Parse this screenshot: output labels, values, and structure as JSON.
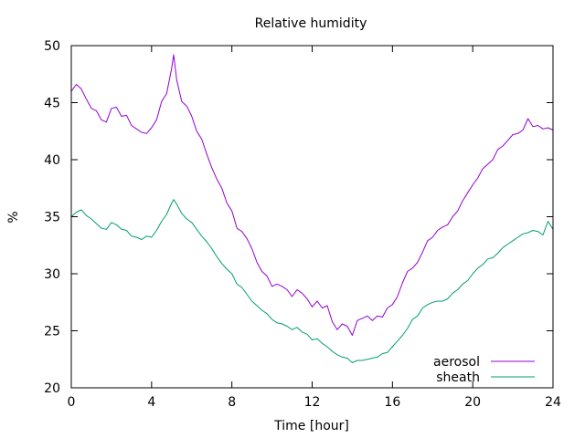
{
  "chart_data": {
    "type": "line",
    "title": "Relative humidity",
    "xlabel": "Time [hour]",
    "ylabel": "%",
    "xlim": [
      0,
      24
    ],
    "ylim": [
      20,
      50
    ],
    "xticks": [
      0,
      4,
      8,
      12,
      16,
      20,
      24
    ],
    "yticks": [
      20,
      25,
      30,
      35,
      40,
      45,
      50
    ],
    "grid": false,
    "legend_position": "bottom-right",
    "series": [
      {
        "name": "aerosol",
        "color": "#9400d3",
        "x": [
          0,
          0.25,
          0.5,
          0.75,
          1,
          1.25,
          1.5,
          1.75,
          2,
          2.25,
          2.5,
          2.75,
          3,
          3.25,
          3.5,
          3.75,
          4,
          4.25,
          4.5,
          4.75,
          5,
          5.1,
          5.25,
          5.5,
          5.75,
          6,
          6.25,
          6.5,
          6.75,
          7,
          7.25,
          7.5,
          7.75,
          8,
          8.25,
          8.5,
          8.75,
          9,
          9.25,
          9.5,
          9.75,
          10,
          10.25,
          10.5,
          10.75,
          11,
          11.25,
          11.5,
          11.75,
          12,
          12.25,
          12.5,
          12.75,
          13,
          13.25,
          13.5,
          13.75,
          14,
          14.25,
          14.5,
          14.75,
          15,
          15.25,
          15.5,
          15.75,
          16,
          16.25,
          16.5,
          16.75,
          17,
          17.25,
          17.5,
          17.75,
          18,
          18.25,
          18.5,
          18.75,
          19,
          19.25,
          19.5,
          19.75,
          20,
          20.25,
          20.5,
          20.75,
          21,
          21.25,
          21.5,
          21.75,
          22,
          22.25,
          22.5,
          22.75,
          23,
          23.25,
          23.5,
          23.75,
          24
        ],
        "values": [
          46.0,
          46.6,
          46.2,
          45.3,
          44.5,
          44.3,
          43.5,
          43.3,
          44.5,
          44.6,
          43.8,
          43.9,
          43.0,
          42.7,
          42.4,
          42.3,
          42.8,
          43.5,
          45.1,
          45.8,
          48.0,
          49.2,
          47.0,
          45.1,
          44.7,
          43.8,
          42.5,
          41.8,
          40.5,
          39.3,
          38.3,
          37.5,
          36.2,
          35.5,
          34.0,
          33.7,
          33.1,
          32.2,
          31.0,
          30.2,
          29.8,
          28.9,
          29.1,
          28.9,
          28.6,
          28.0,
          28.6,
          28.3,
          27.8,
          27.1,
          27.6,
          27.0,
          27.2,
          25.8,
          25.1,
          25.6,
          25.4,
          24.6,
          25.9,
          26.1,
          26.3,
          25.9,
          26.3,
          26.2,
          27.0,
          27.3,
          28.0,
          29.2,
          30.2,
          30.5,
          31.0,
          31.9,
          32.9,
          33.2,
          33.8,
          34.1,
          34.3,
          35.0,
          35.5,
          36.4,
          37.1,
          37.8,
          38.4,
          39.2,
          39.6,
          40.0,
          40.9,
          41.2,
          41.7,
          42.2,
          42.3,
          42.6,
          43.6,
          42.9,
          43.0,
          42.7,
          42.8,
          42.6
        ]
      },
      {
        "name": "sheath",
        "color": "#009e73",
        "x": [
          0,
          0.25,
          0.5,
          0.75,
          1,
          1.25,
          1.5,
          1.75,
          2,
          2.25,
          2.5,
          2.75,
          3,
          3.25,
          3.5,
          3.75,
          4,
          4.25,
          4.5,
          4.75,
          5,
          5.1,
          5.25,
          5.5,
          5.75,
          6,
          6.25,
          6.5,
          6.75,
          7,
          7.25,
          7.5,
          7.75,
          8,
          8.25,
          8.5,
          8.75,
          9,
          9.25,
          9.5,
          9.75,
          10,
          10.25,
          10.5,
          10.75,
          11,
          11.25,
          11.5,
          11.75,
          12,
          12.25,
          12.5,
          12.75,
          13,
          13.25,
          13.5,
          13.75,
          14,
          14.25,
          14.5,
          14.75,
          15,
          15.25,
          15.5,
          15.75,
          16,
          16.25,
          16.5,
          16.75,
          17,
          17.25,
          17.5,
          17.75,
          18,
          18.25,
          18.5,
          18.75,
          19,
          19.25,
          19.5,
          19.75,
          20,
          20.25,
          20.5,
          20.75,
          21,
          21.25,
          21.5,
          21.75,
          22,
          22.25,
          22.5,
          22.75,
          23,
          23.25,
          23.5,
          23.75,
          24
        ],
        "values": [
          35.0,
          35.4,
          35.6,
          35.1,
          34.8,
          34.4,
          34.0,
          33.9,
          34.5,
          34.3,
          33.9,
          33.8,
          33.3,
          33.2,
          33.0,
          33.3,
          33.2,
          33.8,
          34.6,
          35.2,
          36.2,
          36.5,
          36.1,
          35.3,
          34.8,
          34.5,
          33.9,
          33.3,
          32.8,
          32.2,
          31.5,
          30.9,
          30.4,
          30.0,
          29.1,
          28.8,
          28.2,
          27.6,
          27.2,
          26.8,
          26.5,
          26.0,
          25.7,
          25.6,
          25.4,
          25.1,
          25.3,
          24.9,
          24.7,
          24.2,
          24.3,
          23.9,
          23.6,
          23.2,
          22.9,
          22.7,
          22.6,
          22.2,
          22.4,
          22.4,
          22.5,
          22.6,
          22.7,
          23.0,
          23.1,
          23.6,
          24.1,
          24.6,
          25.2,
          26.0,
          26.3,
          27.0,
          27.3,
          27.5,
          27.6,
          27.6,
          27.8,
          28.3,
          28.6,
          29.1,
          29.4,
          30.0,
          30.5,
          30.8,
          31.3,
          31.4,
          31.8,
          32.3,
          32.6,
          32.9,
          33.2,
          33.5,
          33.6,
          33.8,
          33.7,
          33.4,
          34.6,
          33.9
        ]
      }
    ]
  }
}
